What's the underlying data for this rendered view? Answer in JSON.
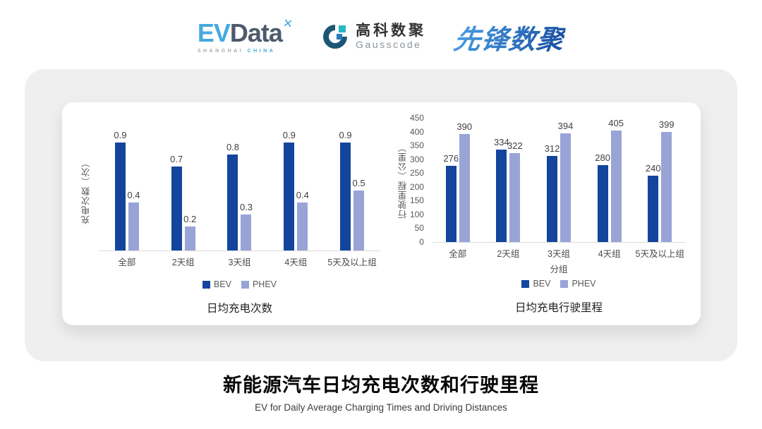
{
  "header": {
    "evdata": {
      "ev": "EV",
      "data": "Data",
      "mark": "✕",
      "sub1": "SHANGHAI",
      "sub2": "CHINA"
    },
    "gausscode": {
      "cn": "高科数聚",
      "en": "Gausscode"
    },
    "pioneer": {
      "text": "先锋数聚"
    }
  },
  "colors": {
    "bev": "#14459D",
    "phev": "#99A4D6",
    "card": "#EFEFEF",
    "axis": "#DCDCDC"
  },
  "chart_data": [
    {
      "type": "bar",
      "title": "日均充电次数",
      "ylabel": "充电次数（次）",
      "xlabel": "",
      "categories": [
        "全部",
        "2天组",
        "3天组",
        "4天组",
        "5天及以上组"
      ],
      "series": [
        {
          "name": "BEV",
          "color": "#14459D",
          "values": [
            0.9,
            0.7,
            0.8,
            0.9,
            0.9
          ]
        },
        {
          "name": "PHEV",
          "color": "#99A4D6",
          "values": [
            0.4,
            0.2,
            0.3,
            0.4,
            0.5
          ]
        }
      ],
      "ylim": [
        0,
        1
      ],
      "yticks": [],
      "legend": [
        "BEV",
        "PHEV"
      ],
      "legend_position": "bottom",
      "data_labels": true,
      "grid": false
    },
    {
      "type": "bar",
      "title": "日均充电行驶里程",
      "ylabel": "行驶里程（公里）",
      "xlabel": "分组",
      "categories": [
        "全部",
        "2天组",
        "3天组",
        "4天组",
        "5天及以上组"
      ],
      "series": [
        {
          "name": "BEV",
          "color": "#14459D",
          "values": [
            276,
            334,
            312,
            280,
            240
          ]
        },
        {
          "name": "PHEV",
          "color": "#99A4D6",
          "values": [
            390,
            322,
            394,
            405,
            399
          ]
        }
      ],
      "ylim": [
        0,
        450
      ],
      "yticks": [
        0,
        50,
        100,
        150,
        200,
        250,
        300,
        350,
        400,
        450
      ],
      "legend": [
        "BEV",
        "PHEV"
      ],
      "legend_position": "bottom",
      "data_labels": true,
      "grid": false
    }
  ],
  "footer": {
    "title": "新能源汽车日均充电次数和行驶里程",
    "subtitle": "EV for Daily Average Charging Times and Driving Distances"
  }
}
